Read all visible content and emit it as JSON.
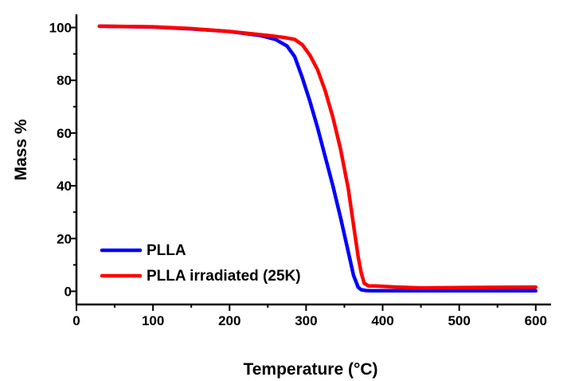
{
  "chart_data": {
    "type": "line",
    "title": "",
    "xlabel": "Temperature (°C)",
    "ylabel": "Mass %",
    "xlim": [
      0,
      620
    ],
    "ylim": [
      -5,
      105
    ],
    "xticks": [
      "0",
      "100",
      "200",
      "300",
      "400",
      "500",
      "600"
    ],
    "yticks": [
      "0",
      "20",
      "40",
      "60",
      "80",
      "100"
    ],
    "grid": false,
    "legend_position": "bottom-left",
    "series": [
      {
        "name": "PLLA",
        "color": "#0000ff",
        "x": [
          30,
          100,
          150,
          200,
          240,
          260,
          275,
          285,
          295,
          305,
          315,
          325,
          335,
          345,
          355,
          362,
          368,
          372,
          378,
          385,
          400,
          500,
          600
        ],
        "y": [
          100.5,
          100.2,
          99.5,
          98.5,
          97,
          95.5,
          93,
          89,
          81,
          72,
          62,
          51,
          40,
          28,
          15,
          6,
          1.5,
          0.6,
          0.3,
          0.2,
          0.2,
          0.2,
          0.2
        ]
      },
      {
        "name": "PLLA irradiated (25K)",
        "color": "#ff0000",
        "x": [
          30,
          100,
          150,
          200,
          250,
          270,
          285,
          295,
          305,
          315,
          325,
          335,
          345,
          355,
          362,
          368,
          372,
          376,
          382,
          390,
          420,
          450,
          500,
          600
        ],
        "y": [
          100.5,
          100.3,
          99.6,
          98.5,
          97,
          96.3,
          95.5,
          93.5,
          89.5,
          84,
          76,
          66,
          54,
          39,
          25,
          13,
          7,
          3,
          2,
          2,
          1.6,
          1.3,
          1.4,
          1.6
        ]
      }
    ]
  }
}
